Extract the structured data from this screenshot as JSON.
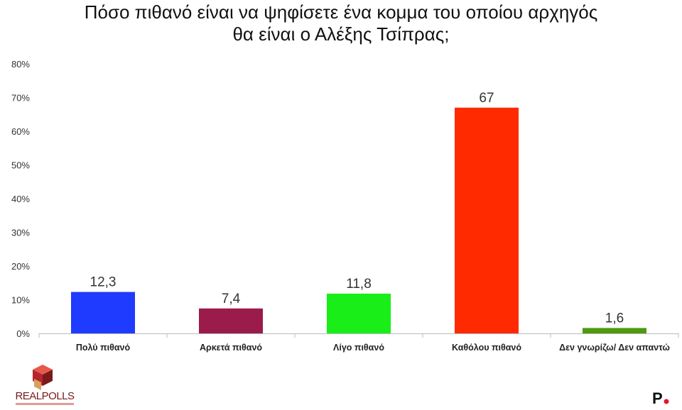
{
  "chart_data": {
    "type": "bar",
    "title_lines": [
      "Πόσο πιθανό είναι να ψηφίσετε ένα κομμα του οποίου αρχηγός",
      "θα είναι ο Αλέξης Τσίπρας;"
    ],
    "categories": [
      "Πολύ πιθανό",
      "Αρκετά πιθανό",
      "Λίγο πιθανό",
      "Καθόλου πιθανό",
      "Δεν γνωρίζω/ Δεν απαντώ"
    ],
    "values": [
      12.3,
      7.4,
      11.8,
      67,
      1.6
    ],
    "value_labels": [
      "12,3",
      "7,4",
      "11,8",
      "67",
      "1,6"
    ],
    "colors": [
      "#1f3bff",
      "#9b1b4b",
      "#19ee19",
      "#ff2a00",
      "#4e9a0f"
    ],
    "yticks": [
      "0%",
      "10%",
      "20%",
      "30%",
      "40%",
      "50%",
      "60%",
      "70%",
      "80%"
    ],
    "ylim": [
      0,
      80
    ],
    "grid": false
  },
  "logos": {
    "realpolls": "REALPOLLS",
    "p_logo": "P."
  }
}
